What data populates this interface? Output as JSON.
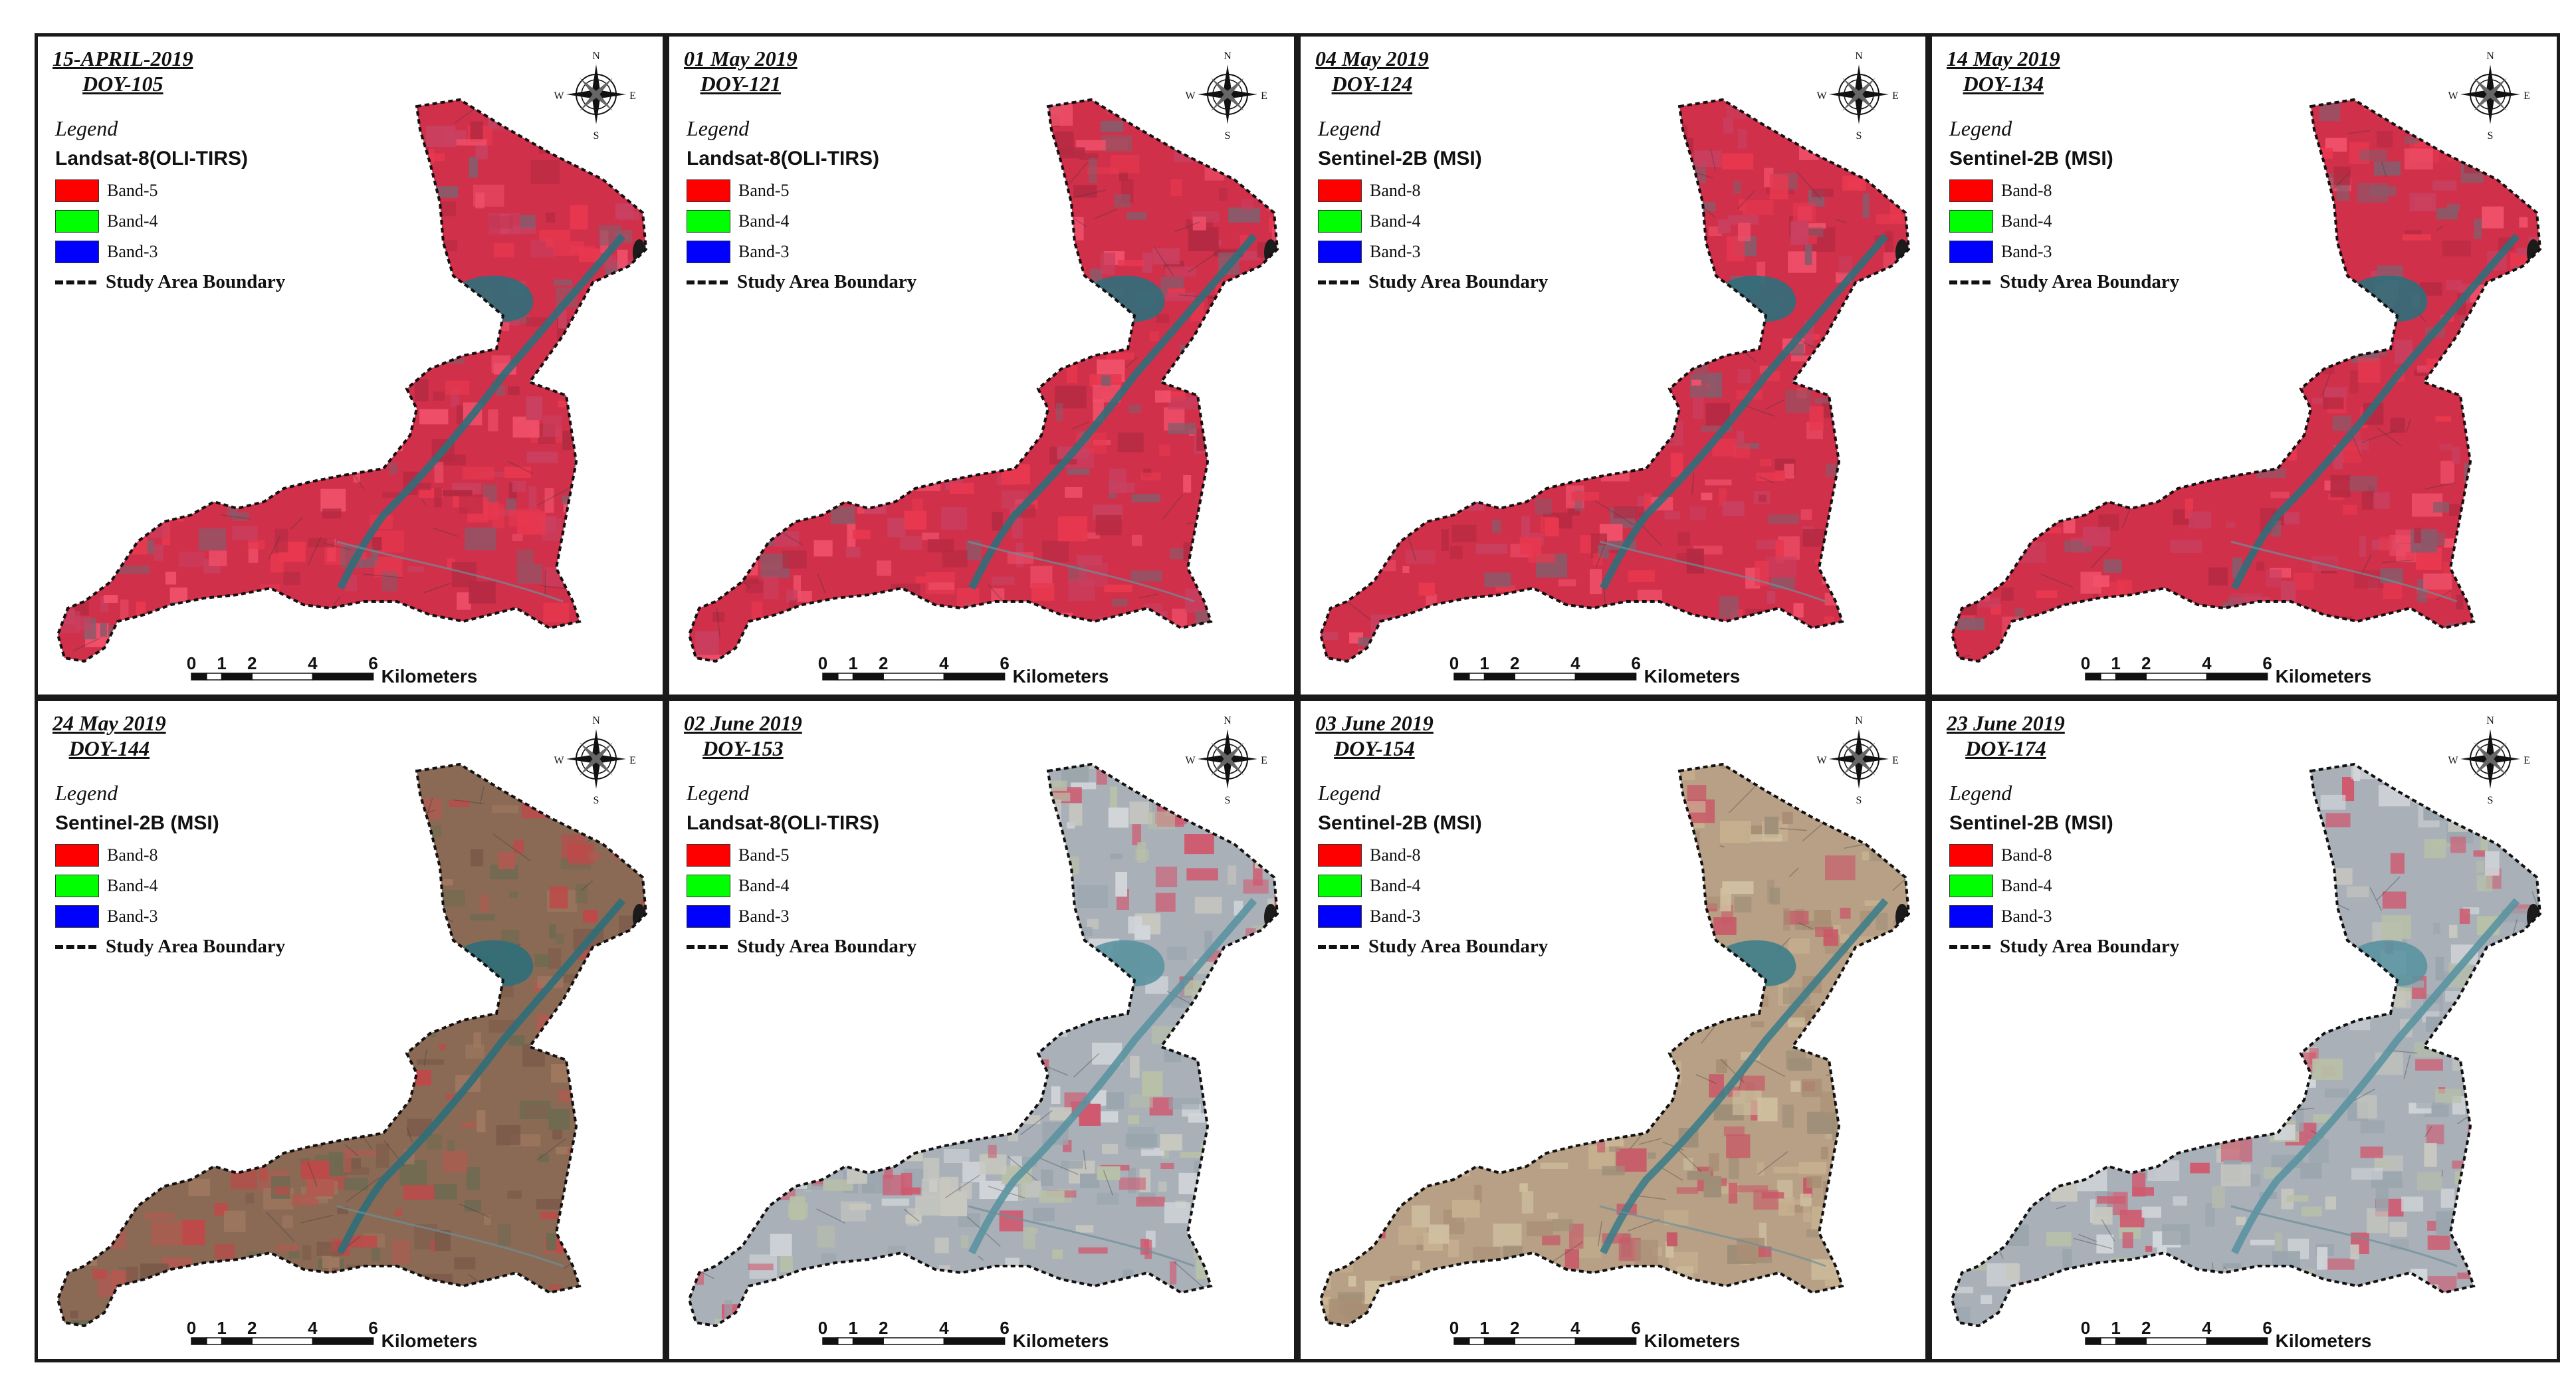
{
  "panels": [
    {
      "date": "15-APRIL-2019",
      "doy": "DOY-105",
      "sensor": "Landsat-8(OLI-TIRS)",
      "bands": [
        "Band-5",
        "Band-4",
        "Band-3"
      ],
      "scene": "vivid"
    },
    {
      "date": "01 May 2019",
      "doy": "DOY-121",
      "sensor": "Landsat-8(OLI-TIRS)",
      "bands": [
        "Band-5",
        "Band-4",
        "Band-3"
      ],
      "scene": "vivid"
    },
    {
      "date": "04 May 2019",
      "doy": "DOY-124",
      "sensor": "Sentinel-2B (MSI)",
      "bands": [
        "Band-8",
        "Band-4",
        "Band-3"
      ],
      "scene": "vivid"
    },
    {
      "date": "14 May 2019",
      "doy": "DOY-134",
      "sensor": "Sentinel-2B (MSI)",
      "bands": [
        "Band-8",
        "Band-4",
        "Band-3"
      ],
      "scene": "vivid"
    },
    {
      "date": "24 May 2019",
      "doy": "DOY-144",
      "sensor": "Sentinel-2B (MSI)",
      "bands": [
        "Band-8",
        "Band-4",
        "Band-3"
      ],
      "scene": "brown"
    },
    {
      "date": "02 June 2019",
      "doy": "DOY-153",
      "sensor": "Landsat-8(OLI-TIRS)",
      "bands": [
        "Band-5",
        "Band-4",
        "Band-3"
      ],
      "scene": "hazy"
    },
    {
      "date": "03 June 2019",
      "doy": "DOY-154",
      "sensor": "Sentinel-2B (MSI)",
      "bands": [
        "Band-8",
        "Band-4",
        "Band-3"
      ],
      "scene": "tan"
    },
    {
      "date": "23 June 2019",
      "doy": "DOY-174",
      "sensor": "Sentinel-2B (MSI)",
      "bands": [
        "Band-8",
        "Band-4",
        "Band-3"
      ],
      "scene": "hazy"
    }
  ],
  "legend": {
    "heading": "Legend",
    "boundary_label": "Study Area Boundary",
    "band_colors": [
      "#ff0000",
      "#00ff00",
      "#0000ff"
    ]
  },
  "scale_bar": {
    "ticks": [
      "0",
      "1",
      "2",
      "4",
      "6"
    ],
    "unit": "Kilometers"
  },
  "north_arrow": {
    "icon": "compass-rose-icon",
    "labels": {
      "n": "N",
      "s": "S",
      "e": "E",
      "w": "W"
    }
  },
  "scene_palettes": {
    "vivid": {
      "base": "#d0304a",
      "alt": [
        "#e8384f",
        "#b52a42",
        "#f0506a",
        "#8a5a6a",
        "#c94060"
      ],
      "water": "#2e6f7a"
    },
    "brown": {
      "base": "#8a6a55",
      "alt": [
        "#b05a50",
        "#6f6a52",
        "#a07860",
        "#c04848",
        "#7c5a4a"
      ],
      "water": "#2e6f7a"
    },
    "hazy": {
      "base": "#a9b0b8",
      "alt": [
        "#c8c8c0",
        "#cf5a70",
        "#9aa5ad",
        "#b8c0a8",
        "#d2d6da"
      ],
      "water": "#5a93a0"
    },
    "tan": {
      "base": "#b7a085",
      "alt": [
        "#c6b090",
        "#c85868",
        "#9e8e78",
        "#d0c0a0",
        "#a88e74"
      ],
      "water": "#3f7d88"
    }
  }
}
